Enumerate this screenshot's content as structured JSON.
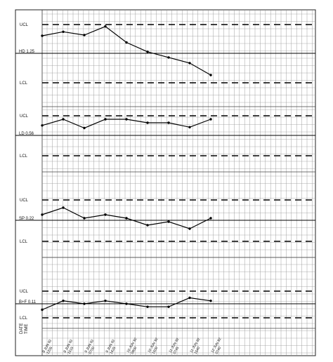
{
  "chart_data": [
    {
      "type": "line",
      "name": "HD",
      "ucl_label": "UCL",
      "center_label": "HD 1.25",
      "lcl_label": "LCL",
      "values": [
        1.6,
        1.72,
        1.62,
        1.88,
        1.4,
        1.12,
        0.95,
        0.78,
        0.42
      ]
    },
    {
      "type": "line",
      "name": "LD",
      "ucl_label": "UCL",
      "center_label": "LD 0.56",
      "lcl_label": "LCL",
      "values": [
        0.65,
        0.72,
        0.62,
        0.72,
        0.72,
        0.68,
        0.68,
        0.63,
        0.72
      ]
    },
    {
      "type": "line",
      "name": "SP",
      "ucl_label": "UCL",
      "center_label": "SP 0.22",
      "lcl_label": "LCL",
      "values": [
        0.3,
        0.32,
        0.29,
        0.3,
        0.29,
        0.27,
        0.28,
        0.26,
        0.29
      ]
    },
    {
      "type": "line",
      "name": "B+F",
      "ucl_label": "UCL",
      "center_label": "B+F 0.11",
      "lcl_label": "LCL",
      "values": [
        0.12,
        0.135,
        0.13,
        0.135,
        0.13,
        0.125,
        0.125,
        0.14,
        0.135
      ]
    }
  ],
  "date_axis": {
    "label_date": "DATE",
    "label_time": "TIME",
    "entries": [
      {
        "date": "8 JUN 92",
        "time": "1205"
      },
      {
        "date": "8 JUN 92",
        "time": "1515"
      },
      {
        "date": "9 JUN 92",
        "time": "0700"
      },
      {
        "date": "9 JUN 92",
        "time": "1625"
      },
      {
        "date": "10 JUN 92",
        "time": "0900"
      },
      {
        "date": "10 JUN 92",
        "time": "1500"
      },
      {
        "date": "11 JUN 92",
        "time": "0745"
      },
      {
        "date": "11 JUN 92",
        "time": "1540"
      },
      {
        "date": "12 JUN 92",
        "time": "0740"
      }
    ]
  }
}
